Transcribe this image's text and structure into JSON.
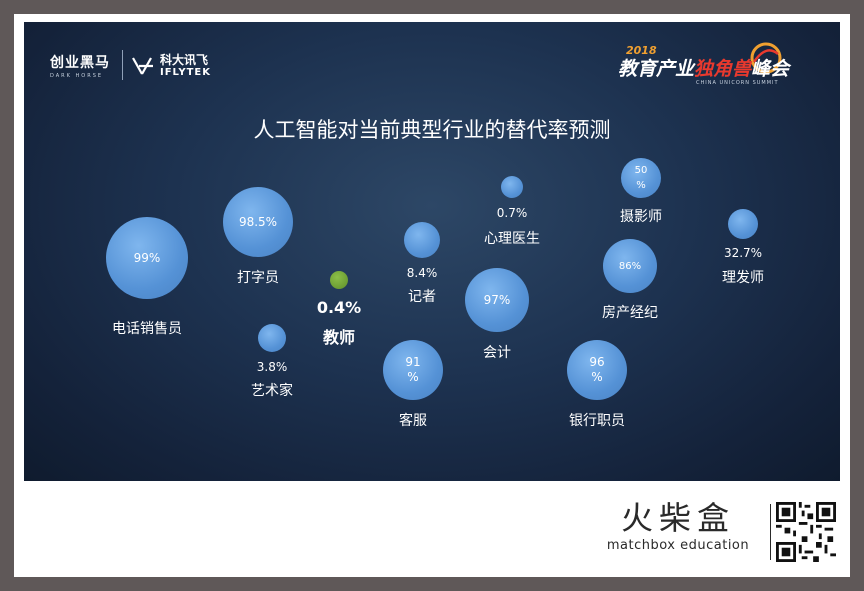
{
  "logos": {
    "chuangye_name": "创业黑马",
    "chuangye_sub": "DARK HORSE",
    "iflytek_cn": "科大讯飞",
    "iflytek_en": "IFLYTEK"
  },
  "summit": {
    "year": "2018",
    "title_part1": "教育产业",
    "title_part2": "独角兽",
    "title_part3": "峰会",
    "subtitle": "CHINA UNICORN SUMMIT"
  },
  "chart_data": {
    "type": "scatter",
    "title": "人工智能对当前典型行业的替代率预测",
    "points": [
      {
        "name": "电话销售员",
        "value": 99,
        "value_label": "99%"
      },
      {
        "name": "打字员",
        "value": 98.5,
        "value_label": "98.5%"
      },
      {
        "name": "教师",
        "value": 0.4,
        "value_label": "0.4%"
      },
      {
        "name": "艺术家",
        "value": 3.8,
        "value_label": "3.8%"
      },
      {
        "name": "记者",
        "value": 8.4,
        "value_label": "8.4%"
      },
      {
        "name": "客服",
        "value": 91,
        "value_label": "91%"
      },
      {
        "name": "心理医生",
        "value": 0.7,
        "value_label": "0.7%"
      },
      {
        "name": "会计",
        "value": 97,
        "value_label": "97%"
      },
      {
        "name": "摄影师",
        "value": 50,
        "value_label": "50%"
      },
      {
        "name": "房产经纪",
        "value": 86,
        "value_label": "86%"
      },
      {
        "name": "银行职员",
        "value": 96,
        "value_label": "96%"
      },
      {
        "name": "理发师",
        "value": 32.7,
        "value_label": "32.7%"
      }
    ],
    "colors": {
      "bubble": "#5b9bd9",
      "highlight": "#6f9e32"
    }
  },
  "footer": {
    "brand_cn": "火柴盒",
    "brand_en": "matchbox education"
  }
}
